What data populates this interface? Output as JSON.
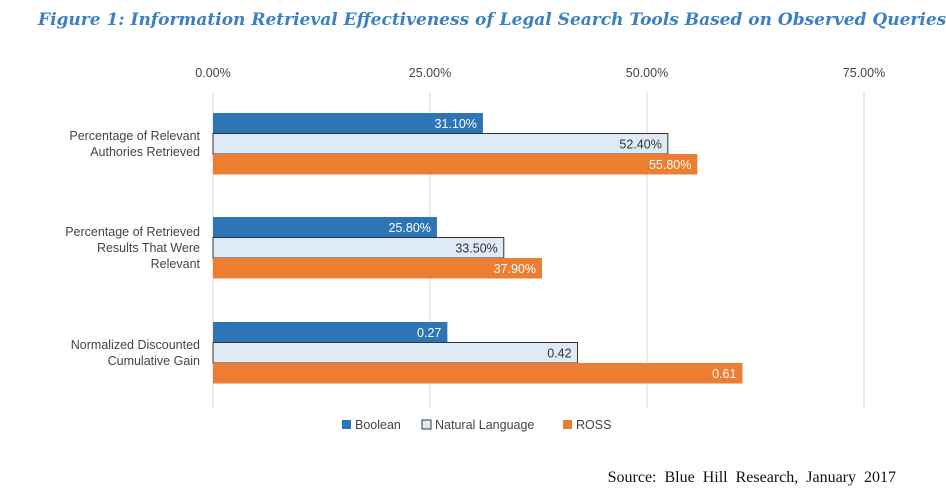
{
  "title": "Figure 1: Information Retrieval Effectiveness of Legal Search Tools Based on Observed Queries",
  "source": "Source: Blue Hill Research, January 2017",
  "colors": {
    "title": "#3b7fc4",
    "boolean": "#2e75b6",
    "natural_language": "#deebf7",
    "ross": "#ed7d31",
    "gridline": "#d9d9d9"
  },
  "chart_data": {
    "type": "bar",
    "orientation": "horizontal",
    "xlim": [
      0,
      0.75
    ],
    "ticks": [
      "0.00%",
      "25.00%",
      "50.00%",
      "75.00%"
    ],
    "tick_values": [
      0,
      0.25,
      0.5,
      0.75
    ],
    "grid": true,
    "legend_position": "bottom",
    "categories": [
      [
        "Percentage of Relevant",
        "Authories Retrieved"
      ],
      [
        "Percentage of Retrieved",
        "Results That Were",
        "Relevant"
      ],
      [
        "Normalized Discounted",
        "Cumulative Gain"
      ]
    ],
    "series": [
      {
        "name": "Boolean",
        "values": [
          0.311,
          0.258,
          0.27
        ],
        "labels": [
          "31.10%",
          "25.80%",
          "0.27"
        ]
      },
      {
        "name": "Natural Language",
        "values": [
          0.524,
          0.335,
          0.42
        ],
        "labels": [
          "52.40%",
          "33.50%",
          "0.42"
        ]
      },
      {
        "name": "ROSS",
        "values": [
          0.558,
          0.379,
          0.61
        ],
        "labels": [
          "55.80%",
          "37.90%",
          "0.61"
        ]
      }
    ]
  }
}
